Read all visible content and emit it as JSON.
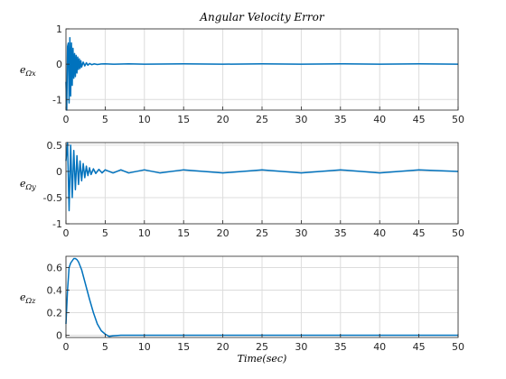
{
  "figure": {
    "title": "Angular Velocity Error",
    "xlabel": "Time(sec)",
    "line_color": "#0072BD",
    "grid_color": "#dcdcdc"
  },
  "chart_data": [
    {
      "type": "line",
      "ylabel_main": "e",
      "ylabel_sub": "Ωx",
      "xlim": [
        0,
        50
      ],
      "ylim": [
        -1.3,
        1
      ],
      "xticks": [
        0,
        5,
        10,
        15,
        20,
        25,
        30,
        35,
        40,
        45,
        50
      ],
      "yticks": [
        -1,
        0,
        1
      ],
      "grid": true,
      "series": [
        {
          "x": [
            0,
            0.1,
            0.2,
            0.3,
            0.4,
            0.5,
            0.6,
            0.7,
            0.8,
            0.9,
            1.0,
            1.1,
            1.2,
            1.3,
            1.4,
            1.5,
            1.6,
            1.7,
            1.8,
            1.9,
            2.0,
            2.2,
            2.4,
            2.6,
            2.8,
            3.0,
            3.3,
            3.6,
            4.0,
            4.5,
            5,
            6,
            8,
            10,
            15,
            20,
            25,
            30,
            35,
            40,
            45,
            50
          ],
          "y": [
            -0.5,
            -1.3,
            0.5,
            0.6,
            -1.1,
            0.75,
            -0.9,
            0.6,
            -0.6,
            0.45,
            -0.4,
            0.3,
            -0.35,
            0.25,
            -0.25,
            0.2,
            -0.15,
            0.15,
            -0.12,
            0.1,
            -0.08,
            0.06,
            -0.05,
            0.04,
            -0.03,
            0.02,
            -0.015,
            0.01,
            -0.01,
            0.005,
            0.01,
            0.0,
            0.01,
            0.0,
            0.01,
            0.0,
            0.01,
            0.0,
            0.01,
            0.0,
            0.01,
            0.0
          ]
        }
      ]
    },
    {
      "type": "line",
      "ylabel_main": "e",
      "ylabel_sub": "Ωy",
      "xlim": [
        0,
        50
      ],
      "ylim": [
        -1,
        0.55
      ],
      "xticks": [
        0,
        5,
        10,
        15,
        20,
        25,
        30,
        35,
        40,
        45,
        50
      ],
      "yticks": [
        -1,
        -0.5,
        0,
        0.5
      ],
      "grid": true,
      "series": [
        {
          "x": [
            0,
            0.2,
            0.4,
            0.6,
            0.8,
            1.0,
            1.2,
            1.4,
            1.6,
            1.8,
            2.0,
            2.2,
            2.4,
            2.6,
            2.8,
            3.0,
            3.2,
            3.5,
            3.8,
            4.2,
            4.6,
            5,
            6,
            7,
            8,
            10,
            12,
            15,
            20,
            25,
            30,
            35,
            40,
            45,
            50
          ],
          "y": [
            0.2,
            0.55,
            -0.75,
            0.5,
            -0.5,
            0.4,
            -0.35,
            0.3,
            -0.25,
            0.2,
            -0.18,
            0.15,
            -0.12,
            0.1,
            -0.08,
            0.07,
            -0.06,
            0.05,
            -0.04,
            0.04,
            -0.03,
            0.03,
            -0.03,
            0.03,
            -0.03,
            0.03,
            -0.03,
            0.03,
            -0.03,
            0.03,
            -0.03,
            0.03,
            -0.03,
            0.03,
            0.0
          ]
        }
      ]
    },
    {
      "type": "line",
      "ylabel_main": "e",
      "ylabel_sub": "Ωz",
      "xlim": [
        0,
        50
      ],
      "ylim": [
        -0.02,
        0.7
      ],
      "xticks": [
        0,
        5,
        10,
        15,
        20,
        25,
        30,
        35,
        40,
        45,
        50
      ],
      "yticks": [
        0,
        0.2,
        0.4,
        0.6
      ],
      "grid": true,
      "series": [
        {
          "x": [
            0,
            0.2,
            0.4,
            0.6,
            0.8,
            1.0,
            1.2,
            1.4,
            1.6,
            2.0,
            2.5,
            3.0,
            3.5,
            4.0,
            4.5,
            5.0,
            5.5,
            6.0,
            7,
            8,
            10,
            15,
            20,
            25,
            30,
            35,
            40,
            45,
            50
          ],
          "y": [
            0.1,
            0.4,
            0.6,
            0.64,
            0.66,
            0.68,
            0.68,
            0.67,
            0.65,
            0.58,
            0.45,
            0.32,
            0.2,
            0.1,
            0.04,
            0.01,
            -0.01,
            -0.005,
            0.0,
            0.0,
            0.0,
            0.0,
            0.0,
            0.0,
            0.0,
            0.0,
            0.0,
            0.0,
            0.0
          ]
        }
      ]
    }
  ]
}
